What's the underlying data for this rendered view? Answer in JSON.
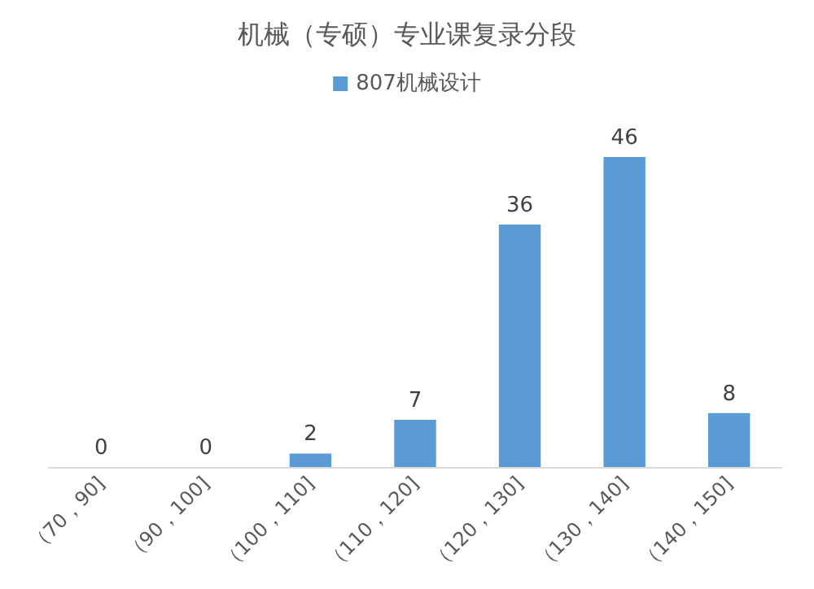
{
  "chart_data": {
    "type": "bar",
    "title": "机械（专硕）专业课复录分段",
    "categories": [
      "（70，90]",
      "（90，100]",
      "（100，110]",
      "（110，120]",
      "（120，130]",
      "（130，140]",
      "（140，150]"
    ],
    "series": [
      {
        "name": "807机械设计",
        "color": "#5b9bd5",
        "values": [
          0,
          0,
          2,
          7,
          36,
          46,
          8
        ]
      }
    ],
    "data_labels": true,
    "legend": "top"
  }
}
